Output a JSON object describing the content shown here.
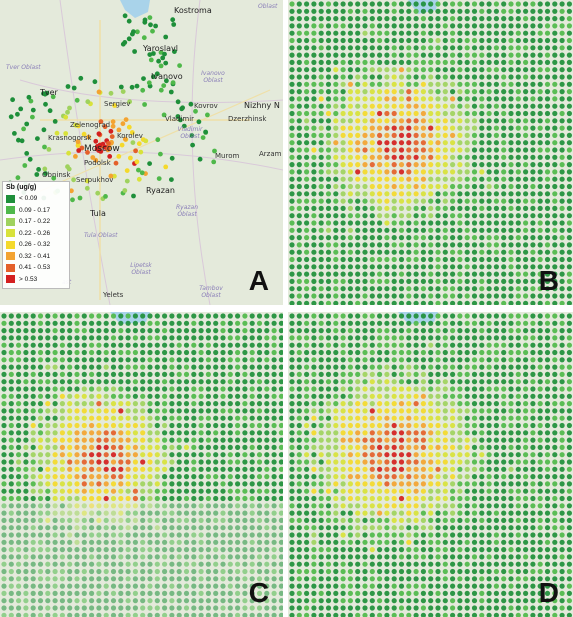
{
  "legend": {
    "title": "Sb (ug/g)",
    "items": [
      {
        "label": "< 0.09",
        "color": "#1e8f3a"
      },
      {
        "label": "0.09 - 0.17",
        "color": "#4fb84a"
      },
      {
        "label": "0.17 - 0.22",
        "color": "#9fd25e"
      },
      {
        "label": "0.22 - 0.26",
        "color": "#d8e23a"
      },
      {
        "label": "0.26 - 0.32",
        "color": "#f4d92b"
      },
      {
        "label": "0.32 - 0.41",
        "color": "#f3a331"
      },
      {
        "label": "0.41 - 0.53",
        "color": "#e4602a"
      },
      {
        "label": "> 0.53",
        "color": "#d42020"
      }
    ]
  },
  "panels": [
    {
      "letter": "A"
    },
    {
      "letter": "B"
    },
    {
      "letter": "C"
    },
    {
      "letter": "D"
    }
  ],
  "map_labels": {
    "cities": {
      "kostroma": "Kostroma",
      "yaroslavl": "Yaroslavl",
      "ivanovo": "Ivanovo",
      "tver": "Tver",
      "nizhny": "Nizhny N",
      "sergiev": "Sergiev",
      "vladimir": "Vladimir",
      "kovrov": "Kovrov",
      "dzerzhinsk": "Dzerzhinsk",
      "zelenograd": "Zelenograd",
      "krasnogorsk": "Krasnogorsk",
      "korolev": "Korolev",
      "moscow": "Moscow",
      "murom": "Murom",
      "podolsk": "Podolsk",
      "obninsk": "Obninsk",
      "serpukhov": "Serpukhov",
      "ryazan": "Ryazan",
      "tula": "Tula",
      "arzam": "Arzam",
      "yelets": "Yelets"
    },
    "regions": {
      "oblast_top": "Oblast",
      "tver_oblast": "Tver Oblast",
      "ivanovo_oblast": "Ivanovo Oblast",
      "vladimir_oblast": "Vladimir Oblast",
      "ryazan_oblast": "Ryazan Oblast",
      "tula_oblast": "Tula Oblast",
      "lipetsk_oblast": "Lipetsk Oblast",
      "tambov_oblast": "Tambov Oblast",
      "oblast_left": "ast"
    }
  }
}
